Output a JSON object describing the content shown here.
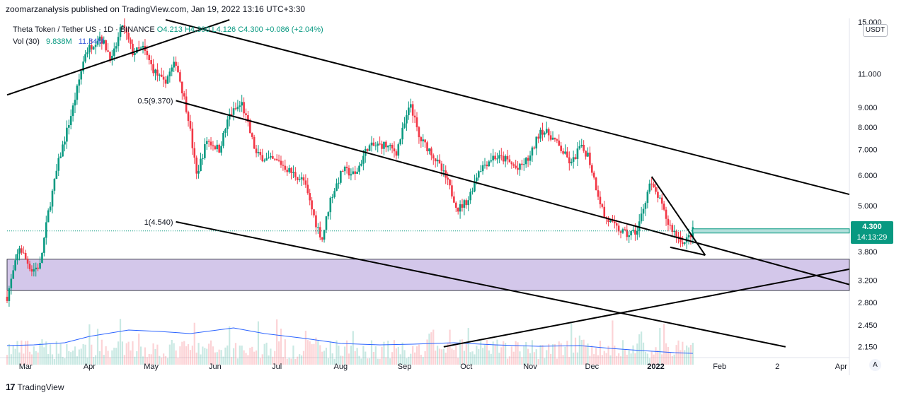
{
  "header": {
    "published": "zoomarzanalysis published on TradingView.com, Jan 19, 2022 13:16 UTC+3:30"
  },
  "legend": {
    "symbol": "Theta Token / Tether US · 1D · BINANCE",
    "open": "O4.213",
    "high": "H4.390",
    "low": "L4.126",
    "close": "C4.300",
    "change": "+0.086 (+2.04%)",
    "vol_label": "Vol (30)",
    "vol_value": "9.838M",
    "vol_ma": "11.84M"
  },
  "currency": "USDT",
  "auto_button": "A",
  "price_tag": {
    "price": "4.300",
    "countdown": "14:13:29"
  },
  "footer": {
    "logo": "17",
    "brand": "TradingView"
  },
  "colors": {
    "up": "#089981",
    "down": "#f23645",
    "zone": "#d1c4e9",
    "volume_ma": "#2962ff",
    "price_line": "#089981"
  },
  "chart_data": {
    "type": "candlestick",
    "scale": "log",
    "ylim": [
      2.05,
      15.2
    ],
    "xlim": [
      "2021-02-20",
      "2022-04-05"
    ],
    "y_ticks": [
      {
        "value": 15.0,
        "label": "15.000"
      },
      {
        "value": 11.0,
        "label": "11.000"
      },
      {
        "value": 9.0,
        "label": "9.000"
      },
      {
        "value": 8.0,
        "label": "8.000"
      },
      {
        "value": 7.0,
        "label": "7.000"
      },
      {
        "value": 6.0,
        "label": "6.000"
      },
      {
        "value": 5.0,
        "label": "5.000"
      },
      {
        "value": 4.3,
        "label": "4.300"
      },
      {
        "value": 3.8,
        "label": "3.800"
      },
      {
        "value": 3.2,
        "label": "3.200"
      },
      {
        "value": 2.8,
        "label": "2.800"
      },
      {
        "value": 2.45,
        "label": "2.450"
      },
      {
        "value": 2.15,
        "label": "2.150"
      }
    ],
    "x_ticks": [
      {
        "date": "2021-03-01",
        "label": "Mar"
      },
      {
        "date": "2021-04-01",
        "label": "Apr"
      },
      {
        "date": "2021-05-01",
        "label": "May"
      },
      {
        "date": "2021-06-01",
        "label": "Jun"
      },
      {
        "date": "2021-07-01",
        "label": "Jul"
      },
      {
        "date": "2021-08-01",
        "label": "Aug"
      },
      {
        "date": "2021-09-01",
        "label": "Sep"
      },
      {
        "date": "2021-10-01",
        "label": "Oct"
      },
      {
        "date": "2021-11-01",
        "label": "Nov"
      },
      {
        "date": "2021-12-01",
        "label": "Dec"
      },
      {
        "date": "2022-01-01",
        "label": "2022"
      },
      {
        "date": "2022-02-01",
        "label": "Feb"
      },
      {
        "date": "2022-03-01",
        "label": "2"
      },
      {
        "date": "2022-04-01",
        "label": "Apr"
      }
    ],
    "price_path": [
      [
        "2021-02-20",
        2.9
      ],
      [
        "2021-02-26",
        3.9
      ],
      [
        "2021-03-04",
        3.4
      ],
      [
        "2021-03-08",
        3.5
      ],
      [
        "2021-03-12",
        4.8
      ],
      [
        "2021-03-17",
        6.5
      ],
      [
        "2021-03-24",
        9.0
      ],
      [
        "2021-03-30",
        12.5
      ],
      [
        "2021-04-06",
        13.8
      ],
      [
        "2021-04-12",
        12.0
      ],
      [
        "2021-04-17",
        14.8
      ],
      [
        "2021-04-22",
        12.5
      ],
      [
        "2021-04-27",
        12.8
      ],
      [
        "2021-05-02",
        11.3
      ],
      [
        "2021-05-07",
        10.4
      ],
      [
        "2021-05-13",
        11.8
      ],
      [
        "2021-05-19",
        8.5
      ],
      [
        "2021-05-23",
        6.0
      ],
      [
        "2021-05-28",
        7.4
      ],
      [
        "2021-06-03",
        7.0
      ],
      [
        "2021-06-08",
        8.6
      ],
      [
        "2021-06-14",
        9.2
      ],
      [
        "2021-06-21",
        6.8
      ],
      [
        "2021-06-26",
        6.6
      ],
      [
        "2021-07-02",
        6.5
      ],
      [
        "2021-07-08",
        6.1
      ],
      [
        "2021-07-14",
        5.8
      ],
      [
        "2021-07-20",
        4.5
      ],
      [
        "2021-07-23",
        4.1
      ],
      [
        "2021-07-27",
        5.2
      ],
      [
        "2021-08-02",
        6.2
      ],
      [
        "2021-08-08",
        6.0
      ],
      [
        "2021-08-14",
        7.1
      ],
      [
        "2021-08-22",
        7.2
      ],
      [
        "2021-08-28",
        6.9
      ],
      [
        "2021-09-04",
        9.2
      ],
      [
        "2021-09-08",
        7.5
      ],
      [
        "2021-09-14",
        6.9
      ],
      [
        "2021-09-21",
        5.9
      ],
      [
        "2021-09-27",
        4.9
      ],
      [
        "2021-10-02",
        5.2
      ],
      [
        "2021-10-07",
        6.2
      ],
      [
        "2021-10-14",
        6.7
      ],
      [
        "2021-10-20",
        6.6
      ],
      [
        "2021-10-26",
        6.2
      ],
      [
        "2021-11-01",
        6.7
      ],
      [
        "2021-11-06",
        7.9
      ],
      [
        "2021-11-11",
        7.6
      ],
      [
        "2021-11-16",
        7.0
      ],
      [
        "2021-11-21",
        6.4
      ],
      [
        "2021-11-25",
        7.1
      ],
      [
        "2021-11-29",
        6.8
      ],
      [
        "2021-12-03",
        5.6
      ],
      [
        "2021-12-07",
        4.7
      ],
      [
        "2021-12-12",
        4.4
      ],
      [
        "2021-12-18",
        4.2
      ],
      [
        "2021-12-23",
        4.3
      ],
      [
        "2021-12-29",
        5.7
      ],
      [
        "2022-01-02",
        5.3
      ],
      [
        "2022-01-07",
        4.5
      ],
      [
        "2022-01-11",
        4.2
      ],
      [
        "2022-01-15",
        4.0
      ],
      [
        "2022-01-19",
        4.3
      ]
    ],
    "price_line": {
      "value": 4.3,
      "label": "4.300"
    },
    "volume_ma": [
      [
        "2021-02-20",
        0.27
      ],
      [
        "2021-03-05",
        0.28
      ],
      [
        "2021-03-20",
        0.31
      ],
      [
        "2021-04-01",
        0.4
      ],
      [
        "2021-04-20",
        0.49
      ],
      [
        "2021-05-05",
        0.47
      ],
      [
        "2021-05-20",
        0.44
      ],
      [
        "2021-06-10",
        0.52
      ],
      [
        "2021-06-25",
        0.44
      ],
      [
        "2021-07-15",
        0.37
      ],
      [
        "2021-08-01",
        0.3
      ],
      [
        "2021-08-20",
        0.28
      ],
      [
        "2021-09-05",
        0.29
      ],
      [
        "2021-09-25",
        0.31
      ],
      [
        "2021-10-15",
        0.28
      ],
      [
        "2021-11-05",
        0.26
      ],
      [
        "2021-11-25",
        0.27
      ],
      [
        "2021-12-10",
        0.23
      ],
      [
        "2021-12-25",
        0.2
      ],
      [
        "2022-01-10",
        0.17
      ],
      [
        "2022-01-19",
        0.16
      ]
    ],
    "zone": {
      "top": 3.63,
      "bottom": 3.01
    },
    "trendlines": [
      {
        "name": "upper-ascending-line",
        "p1": [
          "2021-02-20",
          9.7
        ],
        "p2": [
          "2021-06-08",
          15.2
        ]
      },
      {
        "name": "upper-channel-line",
        "p1": [
          "2021-05-08",
          15.2
        ],
        "p2": [
          "2022-04-05",
          5.35
        ]
      },
      {
        "name": "middle-channel-line",
        "p1": [
          "2021-05-13",
          9.37
        ],
        "p2": [
          "2022-04-05",
          3.12
        ]
      },
      {
        "name": "lower-channel-line",
        "p1": [
          "2021-05-13",
          4.54
        ],
        "p2": [
          "2022-03-05",
          2.15
        ]
      },
      {
        "name": "lower-ascending-line",
        "p1": [
          "2021-09-20",
          2.15
        ],
        "p2": [
          "2022-04-05",
          3.42
        ]
      },
      {
        "name": "short-downtrend-line",
        "p1": [
          "2021-12-30",
          5.95
        ],
        "p2": [
          "2022-01-25",
          3.72
        ]
      },
      {
        "name": "short-support-line",
        "p1": [
          "2022-01-08",
          3.9
        ],
        "p2": [
          "2022-01-25",
          3.72
        ]
      }
    ],
    "fib_labels": [
      {
        "label": "0.5(9.370)",
        "date": "2021-05-13",
        "value": 9.37
      },
      {
        "label": "1(4.540)",
        "date": "2021-05-13",
        "value": 4.54
      }
    ]
  }
}
